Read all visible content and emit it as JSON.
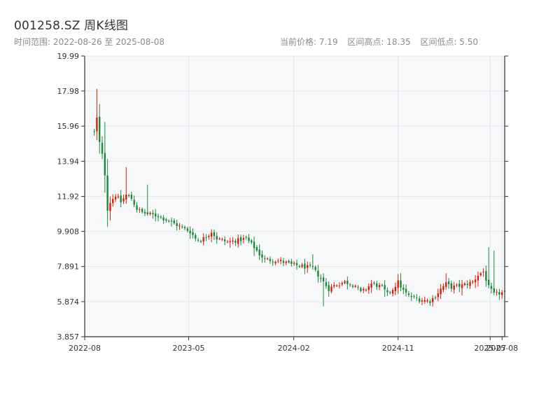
{
  "header": {
    "title": "001258.SZ 周K线图",
    "range_text": "时间范围: 2022-08-26 至 2025-08-08",
    "current_price_text": "当前价格: 7.19",
    "high_text": "区间高点: 18.35",
    "low_text": "区间低点: 5.50"
  },
  "colors": {
    "up": "#d81e06",
    "down": "#1a8a3a",
    "plot_bg": "#f7f8fa",
    "grid": "#e3e6ea",
    "axis": "#333333"
  },
  "chart_data": {
    "type": "candlestick",
    "title": "001258.SZ 周K线图",
    "ylim": [
      3.857,
      19.99
    ],
    "y_ticks": [
      "19.99",
      "17.98",
      "15.96",
      "13.94",
      "11.92",
      "9.908",
      "7.891",
      "5.874",
      "3.857"
    ],
    "x_range": [
      "2022-08-01",
      "2025-08-08"
    ],
    "x_ticks": [
      {
        "date": "2022-08-01",
        "label": "2022-08"
      },
      {
        "date": "2023-05-01",
        "label": "2023-05"
      },
      {
        "date": "2024-02-01",
        "label": "2024-02"
      },
      {
        "date": "2024-11-01",
        "label": "2024-11"
      },
      {
        "date": "2025-07-01",
        "label": "2025-07"
      },
      {
        "date": "2025-08-01",
        "label": "2025-08"
      }
    ],
    "grid": true,
    "start_date": "2022-08-26",
    "end_date": "2025-08-08",
    "close_path": [
      [
        0,
        15.6
      ],
      [
        1,
        16.4
      ],
      [
        2,
        15.0
      ],
      [
        3,
        14.3
      ],
      [
        4,
        13.2
      ],
      [
        5,
        11.2
      ],
      [
        6,
        11.6
      ],
      [
        8,
        12.0
      ],
      [
        10,
        11.6
      ],
      [
        12,
        12.0
      ],
      [
        14,
        11.8
      ],
      [
        16,
        11.2
      ],
      [
        18,
        11.0
      ],
      [
        20,
        10.9
      ],
      [
        24,
        10.8
      ],
      [
        28,
        10.5
      ],
      [
        32,
        10.2
      ],
      [
        36,
        9.9
      ],
      [
        38,
        9.5
      ],
      [
        40,
        9.4
      ],
      [
        42,
        9.6
      ],
      [
        44,
        9.9
      ],
      [
        46,
        9.5
      ],
      [
        50,
        9.3
      ],
      [
        54,
        9.4
      ],
      [
        57,
        9.5
      ],
      [
        60,
        9.0
      ],
      [
        62,
        8.6
      ],
      [
        64,
        8.3
      ],
      [
        70,
        8.2
      ],
      [
        74,
        8.0
      ],
      [
        78,
        7.9
      ],
      [
        82,
        7.8
      ],
      [
        84,
        7.4
      ],
      [
        86,
        7.0
      ],
      [
        88,
        6.6
      ],
      [
        90,
        6.8
      ],
      [
        92,
        6.9
      ],
      [
        94,
        7.0
      ],
      [
        98,
        6.8
      ],
      [
        100,
        6.4
      ],
      [
        102,
        6.6
      ],
      [
        104,
        6.9
      ],
      [
        108,
        6.7
      ],
      [
        110,
        6.3
      ],
      [
        112,
        6.6
      ],
      [
        114,
        7.0
      ],
      [
        116,
        6.5
      ],
      [
        118,
        6.2
      ],
      [
        122,
        6.0
      ],
      [
        126,
        5.9
      ],
      [
        128,
        6.2
      ],
      [
        130,
        6.6
      ],
      [
        132,
        6.9
      ],
      [
        134,
        6.7
      ],
      [
        138,
        6.8
      ],
      [
        142,
        7.0
      ],
      [
        144,
        7.4
      ],
      [
        146,
        7.6
      ],
      [
        148,
        6.7
      ],
      [
        150,
        6.3
      ],
      [
        154,
        6.4
      ],
      [
        156,
        6.5
      ],
      [
        158,
        6.7
      ],
      [
        160,
        7.8
      ],
      [
        162,
        7.2
      ],
      [
        164,
        7.0
      ],
      [
        166,
        6.9
      ],
      [
        168,
        7.1
      ],
      [
        172,
        7.3
      ],
      [
        176,
        7.4
      ],
      [
        180,
        7.5
      ],
      [
        182,
        7.6
      ],
      [
        184,
        7.3
      ],
      [
        186,
        7.19
      ]
    ],
    "spikes": [
      {
        "i": 1,
        "v": 18.1
      },
      {
        "i": 4,
        "v": 16.2
      },
      {
        "i": 12,
        "v": 13.6
      },
      {
        "i": 20,
        "v": 12.6
      },
      {
        "i": 82,
        "v": 8.6
      },
      {
        "i": 86,
        "v": 5.6
      },
      {
        "i": 115,
        "v": 7.5
      },
      {
        "i": 132,
        "v": 7.5
      },
      {
        "i": 148,
        "v": 9.0
      },
      {
        "i": 150,
        "v": 8.8
      },
      {
        "i": 164,
        "v": 8.4
      },
      {
        "i": 166,
        "v": 9.0
      },
      {
        "i": 184,
        "v": 7.9
      }
    ]
  }
}
